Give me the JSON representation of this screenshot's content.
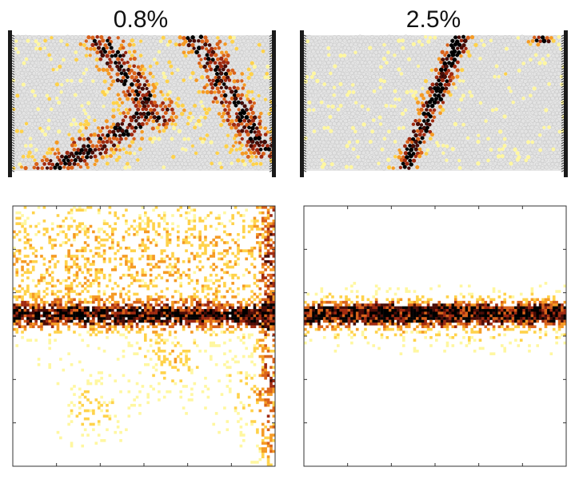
{
  "panels": {
    "left": {
      "strain_label": "0.8%"
    },
    "right": {
      "strain_label": "2.5%"
    }
  },
  "colors": {
    "particle_fill": "#e3e3e3",
    "particle_edge": "#c4c4c4",
    "wall": "#1a1a1a",
    "heat_scale": [
      "#fff7a0",
      "#ffd24a",
      "#f59a24",
      "#d9621a",
      "#a02a10",
      "#4a0c06",
      "#000000"
    ]
  }
}
